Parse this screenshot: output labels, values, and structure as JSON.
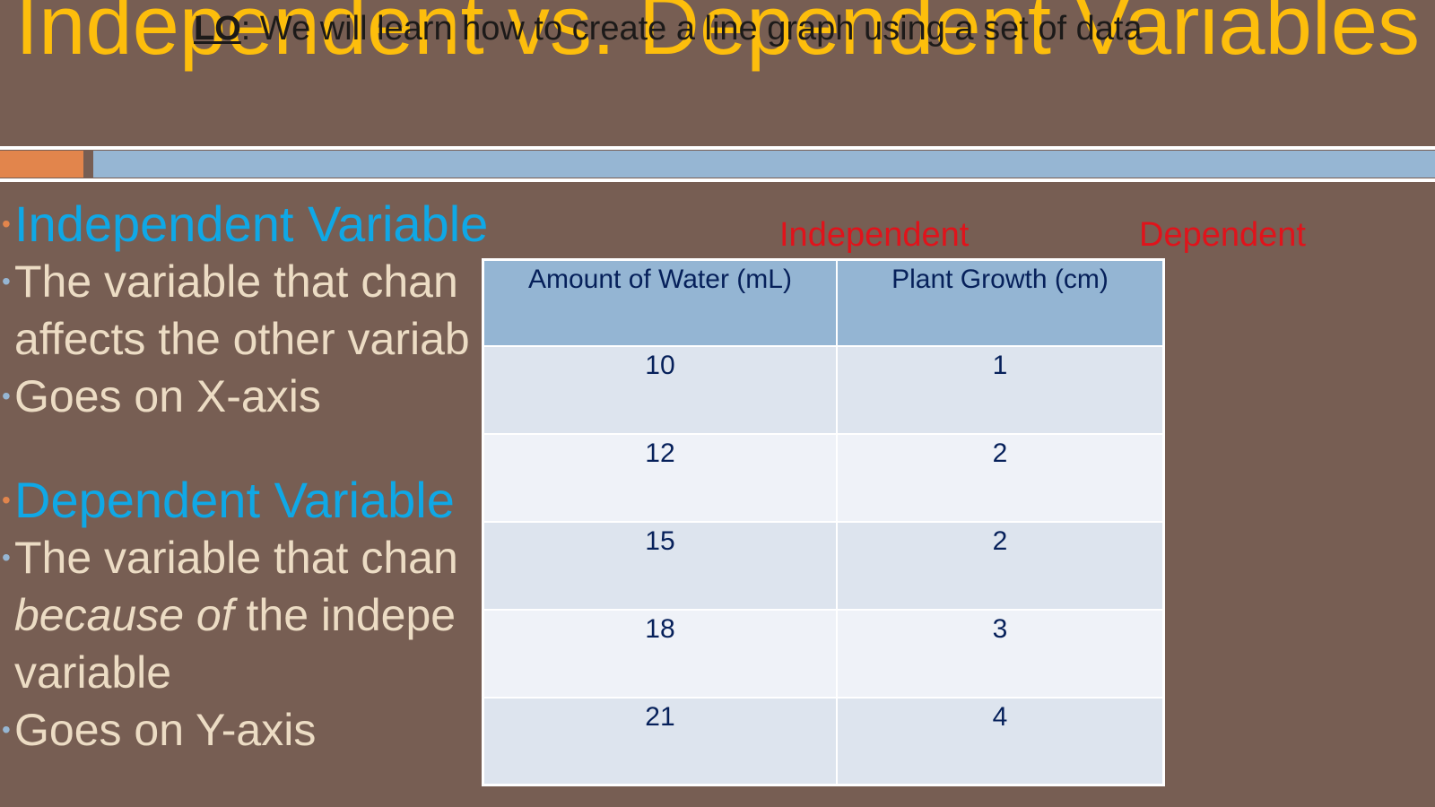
{
  "slide": {
    "title": "Independent vs. Dependent Variables",
    "lo_label": "LO",
    "lo_text": ": We will learn how to create a line graph using a set of data"
  },
  "body": {
    "independent_heading": "Independent Variable",
    "independent_def_1": "The variable that chan",
    "independent_def_2": "affects the other variab",
    "independent_axis": "Goes on X-axis",
    "dependent_heading": "Dependent Variable",
    "dependent_def_1": "The variable that chan",
    "dependent_def_2_italic": "because of",
    "dependent_def_2_rest": " the indepe",
    "dependent_def_3": "variable",
    "dependent_axis": "Goes on Y-axis"
  },
  "table_labels": {
    "left": "Independent",
    "right": "Dependent"
  },
  "table": {
    "headers": [
      "Amount of Water (mL)",
      "Plant Growth (cm)"
    ],
    "rows": [
      [
        "10",
        "1"
      ],
      [
        "12",
        "2"
      ],
      [
        "15",
        "2"
      ],
      [
        "18",
        "3"
      ],
      [
        "21",
        "4"
      ]
    ]
  },
  "colors": {
    "background": "#775e53",
    "title": "#fdbe0c",
    "heading": "#0fa8e6",
    "body_text": "#ecdcc4",
    "label_red": "#e0131b",
    "accent_orange": "#e2854c",
    "accent_blue": "#96b6d3"
  }
}
